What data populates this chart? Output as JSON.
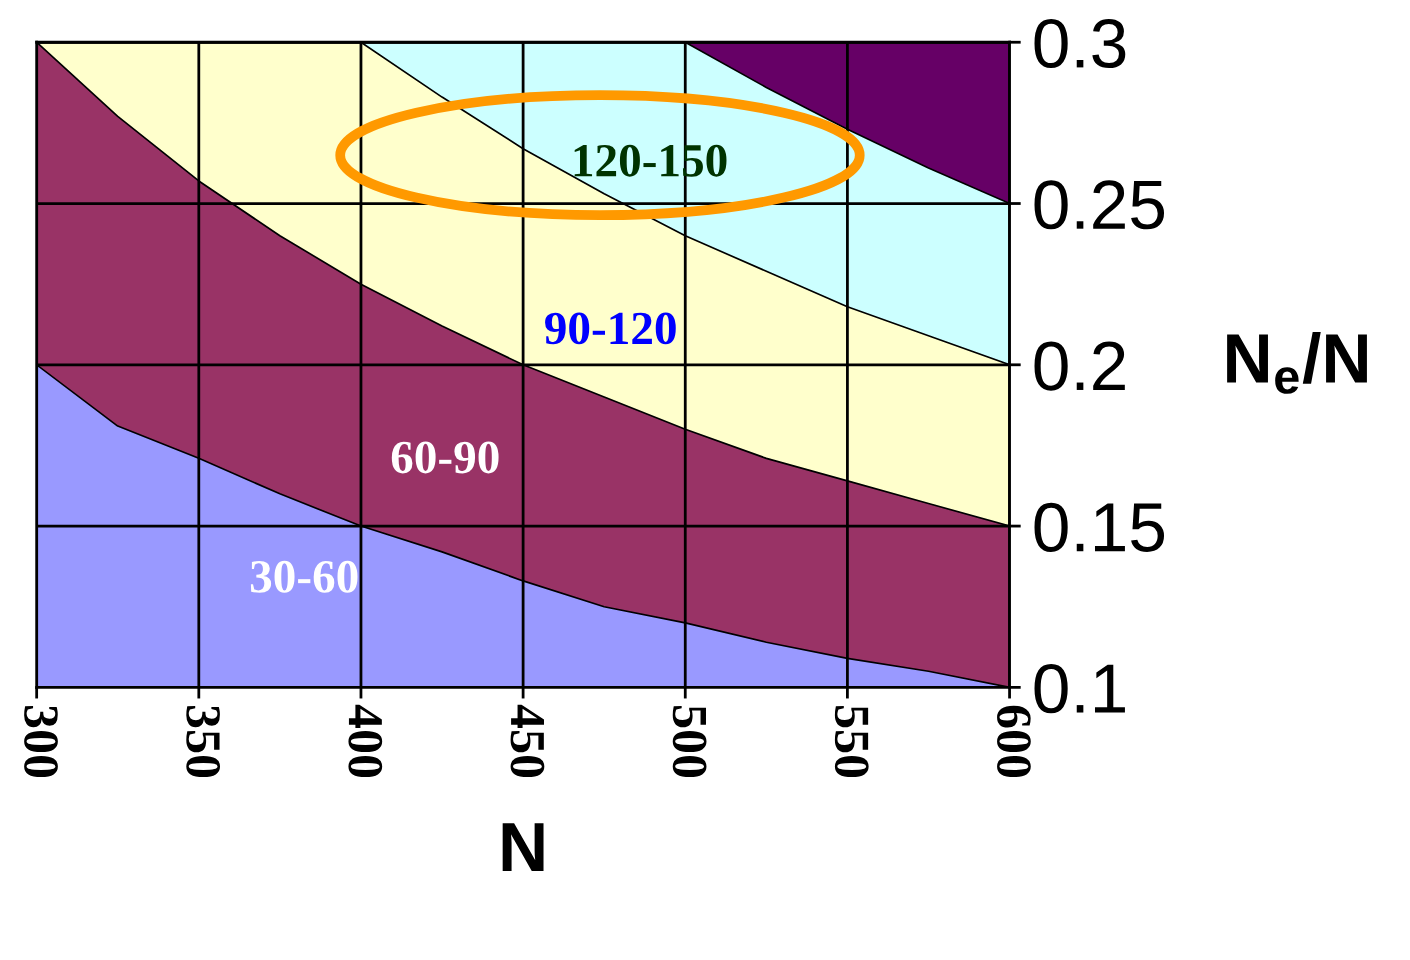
{
  "chart_data": {
    "type": "area",
    "xlabel": "N",
    "ylabel": "N$_{e}$/N",
    "x": [
      300,
      325,
      350,
      375,
      400,
      425,
      450,
      475,
      500,
      525,
      550,
      575,
      600
    ],
    "series": [
      {
        "color": "#660066",
        "values": [
          0.3,
          0.3,
          0.3,
          0.3,
          0.3,
          0.3,
          0.3,
          0.3,
          0.3,
          0.3,
          0.3,
          0.3,
          0.3
        ]
      },
      {
        "name": "120-150",
        "color": "#ccffff",
        "values": [
          0.3,
          0.3,
          0.3,
          0.3,
          0.3,
          0.3,
          0.3,
          0.3,
          0.3,
          0.286,
          0.273,
          0.261,
          0.25
        ]
      },
      {
        "name": "90-120",
        "color": "#ffffcc",
        "values": [
          0.3,
          0.3,
          0.3,
          0.3,
          0.3,
          0.283,
          0.267,
          0.253,
          0.24,
          0.229,
          0.218,
          0.209,
          0.2
        ]
      },
      {
        "name": "60-90",
        "color": "#993366",
        "values": [
          0.3,
          0.277,
          0.257,
          0.24,
          0.225,
          0.212,
          0.2,
          0.19,
          0.18,
          0.171,
          0.164,
          0.157,
          0.15
        ]
      },
      {
        "name": "30-60",
        "color": "#9999ff",
        "values": [
          0.2,
          0.181,
          0.171,
          0.16,
          0.15,
          0.142,
          0.133,
          0.125,
          0.12,
          0.114,
          0.109,
          0.105,
          0.1
        ]
      }
    ],
    "xlim": [
      300,
      600
    ],
    "xticks": [
      300,
      350,
      400,
      450,
      500,
      550,
      600
    ],
    "ylim": [
      0.1,
      0.3
    ],
    "yticks": [
      0.1,
      0.15,
      0.2,
      0.25,
      0.3
    ],
    "grid": true,
    "legend": false
  }
}
